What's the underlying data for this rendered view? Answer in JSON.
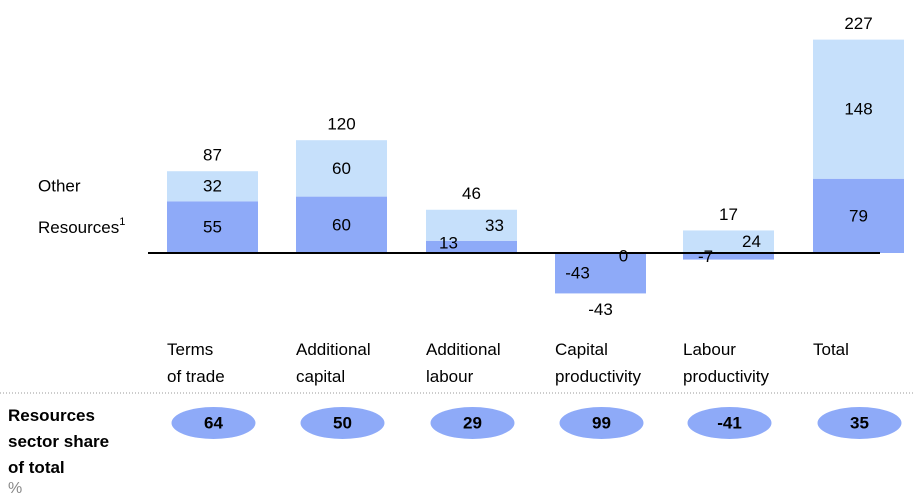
{
  "chart_data": {
    "type": "stacked_bar",
    "categories": [
      "Terms\nof trade",
      "Additional\ncapital",
      "Additional\nlabour",
      "Capital\nproductivity",
      "Labour\nproductivity",
      "Total"
    ],
    "series": [
      {
        "name": "Resources",
        "footnote_marker": "1",
        "color": "#8eaaf8",
        "values": [
          55,
          60,
          13,
          -43,
          -7,
          79
        ]
      },
      {
        "name": "Other",
        "color": "#c6e0fb",
        "values": [
          32,
          60,
          33,
          0,
          24,
          148
        ]
      }
    ],
    "totals": [
      87,
      120,
      46,
      -43,
      17,
      227
    ],
    "share": {
      "title": "Resources\nsector share\nof total",
      "unit": "%",
      "color": "#8eaaf8",
      "values": [
        64,
        50,
        29,
        99,
        -41,
        35
      ]
    }
  }
}
